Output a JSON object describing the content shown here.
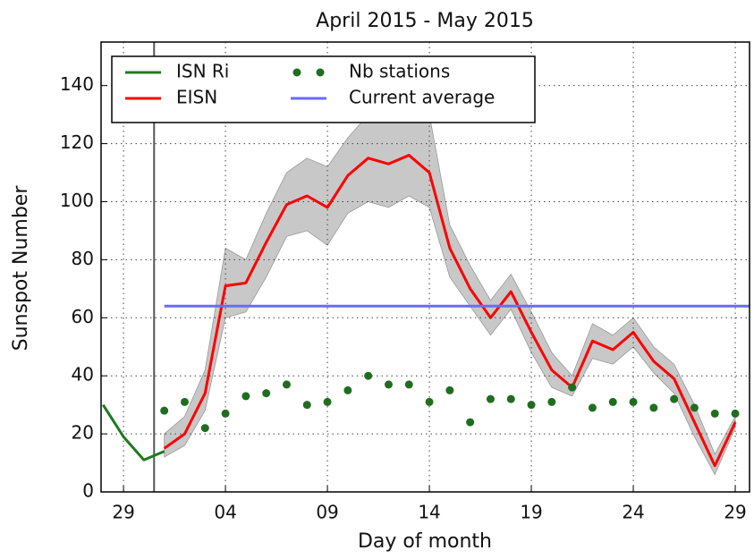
{
  "chart_data": {
    "type": "line",
    "title": "April 2015 - May 2015",
    "xlabel": "Day of month",
    "ylabel": "Sunspot Number",
    "xlim": [
      27.9,
      59.7
    ],
    "ylim": [
      0,
      155
    ],
    "xticks": [
      {
        "value": 29,
        "label": "29"
      },
      {
        "value": 34,
        "label": "04"
      },
      {
        "value": 39,
        "label": "09"
      },
      {
        "value": 44,
        "label": "14"
      },
      {
        "value": 49,
        "label": "19"
      },
      {
        "value": 54,
        "label": "24"
      },
      {
        "value": 59,
        "label": "29"
      }
    ],
    "yticks": [
      0,
      20,
      40,
      60,
      80,
      100,
      120,
      140
    ],
    "grid": true,
    "legend": "upper left",
    "vline": 30.5,
    "band": {
      "color": "#c8c8c8",
      "x": [
        31,
        32,
        33,
        34,
        35,
        36,
        37,
        38,
        39,
        40,
        41,
        42,
        43,
        44,
        45,
        46,
        47,
        48,
        49,
        50,
        51,
        52,
        53,
        54,
        55,
        56,
        57,
        58,
        59
      ],
      "lower": [
        12,
        16,
        28,
        60,
        62,
        74,
        88,
        90,
        85,
        96,
        100,
        98,
        102,
        98,
        74,
        64,
        54,
        63,
        48,
        36,
        33,
        46,
        44,
        50,
        41,
        34,
        19,
        6,
        22
      ],
      "upper": [
        20,
        26,
        42,
        84,
        80,
        96,
        110,
        115,
        112,
        122,
        130,
        130,
        130,
        130,
        92,
        78,
        66,
        75,
        62,
        48,
        40,
        58,
        54,
        60,
        50,
        44,
        30,
        13,
        26
      ]
    },
    "series": [
      {
        "name": "ISN Ri",
        "color": "#1f7a1f",
        "style": "line",
        "x": [
          28,
          29,
          30,
          31
        ],
        "values": [
          30,
          19,
          11,
          14
        ]
      },
      {
        "name": "EISN",
        "color": "#ff0000",
        "style": "line",
        "x": [
          31,
          32,
          33,
          34,
          35,
          36,
          37,
          38,
          39,
          40,
          41,
          42,
          43,
          44,
          45,
          46,
          47,
          48,
          49,
          50,
          51,
          52,
          53,
          54,
          55,
          56,
          57,
          58,
          59
        ],
        "values": [
          15,
          20,
          34,
          71,
          72,
          86,
          99,
          102,
          98,
          109,
          115,
          113,
          116,
          110,
          84,
          70,
          60,
          69,
          55,
          42,
          36,
          52,
          49,
          55,
          45,
          39,
          24,
          9,
          24
        ]
      },
      {
        "name": "Nb stations",
        "color": "#1f6e1f",
        "style": "markers",
        "x": [
          31,
          32,
          33,
          34,
          35,
          36,
          37,
          38,
          39,
          40,
          41,
          42,
          43,
          44,
          45,
          46,
          47,
          48,
          49,
          50,
          51,
          52,
          53,
          54,
          55,
          56,
          57,
          58,
          59
        ],
        "values": [
          28,
          31,
          22,
          27,
          33,
          34,
          37,
          30,
          31,
          35,
          40,
          37,
          37,
          31,
          35,
          24,
          32,
          32,
          30,
          31,
          36,
          29,
          31,
          31,
          29,
          32,
          29,
          27,
          27
        ]
      },
      {
        "name": "Current average",
        "color": "#6a6aff",
        "style": "line",
        "x": [
          31,
          59.7
        ],
        "values": [
          64,
          64
        ]
      }
    ]
  }
}
